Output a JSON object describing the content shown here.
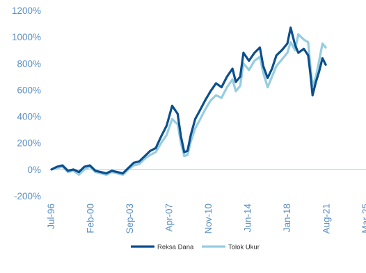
{
  "chart_data": {
    "type": "line",
    "title": "",
    "xlabel": "",
    "ylabel": "",
    "ylim": [
      -200,
      1200
    ],
    "y_ticks": [
      -200,
      0,
      200,
      400,
      600,
      800,
      1000,
      1200
    ],
    "y_tick_labels": [
      "-200%",
      "0%",
      "200%",
      "400%",
      "600%",
      "800%",
      "1000%",
      "1200%"
    ],
    "x_ticks": [
      1996.5,
      2000.08,
      2003.67,
      2007.25,
      2010.83,
      2014.42,
      2018.0,
      2021.58,
      2025.17
    ],
    "x_tick_labels": [
      "Jul-96",
      "Feb-00",
      "Sep-03",
      "Apr-07",
      "Nov-10",
      "Jun-14",
      "Jan-18",
      "Aug-21",
      "Mar-25"
    ],
    "xlim": [
      1996.5,
      2025.17
    ],
    "legend_position": "bottom-center",
    "grid": false,
    "series": [
      {
        "name": "Reksa Dana",
        "color": "#0b4e8c",
        "x": [
          1996.5,
          1997.0,
          1997.5,
          1998.0,
          1998.5,
          1999.0,
          1999.5,
          2000.0,
          2000.5,
          2001.0,
          2001.5,
          2002.0,
          2002.5,
          2003.0,
          2003.5,
          2004.0,
          2004.5,
          2005.0,
          2005.5,
          2006.0,
          2006.5,
          2007.0,
          2007.5,
          2008.0,
          2008.3,
          2008.6,
          2008.9,
          2009.2,
          2009.6,
          2010.0,
          2010.5,
          2011.0,
          2011.5,
          2012.0,
          2012.5,
          2013.0,
          2013.3,
          2013.7,
          2014.0,
          2014.5,
          2015.0,
          2015.5,
          2015.8,
          2016.2,
          2016.6,
          2017.0,
          2017.5,
          2018.0,
          2018.3,
          2018.7,
          2019.0,
          2019.5,
          2019.9,
          2020.1,
          2020.3,
          2020.6,
          2020.9,
          2021.2,
          2021.5
        ],
        "values": [
          0,
          20,
          30,
          -10,
          0,
          -20,
          20,
          30,
          -10,
          -20,
          -30,
          -10,
          -20,
          -30,
          10,
          50,
          60,
          100,
          140,
          160,
          250,
          330,
          480,
          420,
          250,
          130,
          140,
          260,
          380,
          440,
          520,
          590,
          650,
          620,
          700,
          760,
          660,
          700,
          880,
          820,
          880,
          920,
          780,
          690,
          760,
          860,
          900,
          950,
          1070,
          940,
          880,
          910,
          860,
          720,
          560,
          660,
          740,
          840,
          790
        ]
      },
      {
        "name": "Tolok Ukur",
        "color": "#96cde0",
        "x": [
          1996.5,
          1997.0,
          1997.5,
          1998.0,
          1998.5,
          1999.0,
          1999.5,
          2000.0,
          2000.5,
          2001.0,
          2001.5,
          2002.0,
          2002.5,
          2003.0,
          2003.5,
          2004.0,
          2004.5,
          2005.0,
          2005.5,
          2006.0,
          2006.5,
          2007.0,
          2007.5,
          2008.0,
          2008.3,
          2008.6,
          2008.9,
          2009.2,
          2009.6,
          2010.0,
          2010.5,
          2011.0,
          2011.5,
          2012.0,
          2012.5,
          2013.0,
          2013.3,
          2013.7,
          2014.0,
          2014.5,
          2015.0,
          2015.5,
          2015.8,
          2016.2,
          2016.6,
          2017.0,
          2017.5,
          2018.0,
          2018.3,
          2018.7,
          2019.0,
          2019.5,
          2019.9,
          2020.1,
          2020.3,
          2020.6,
          2020.9,
          2021.2,
          2021.5
        ],
        "values": [
          0,
          10,
          20,
          -20,
          -10,
          -40,
          0,
          20,
          -20,
          -30,
          -40,
          -20,
          -30,
          -40,
          0,
          30,
          40,
          80,
          110,
          130,
          200,
          260,
          380,
          340,
          200,
          100,
          110,
          210,
          310,
          370,
          450,
          520,
          560,
          540,
          620,
          680,
          590,
          630,
          800,
          750,
          820,
          850,
          730,
          620,
          700,
          780,
          830,
          880,
          960,
          900,
          1020,
          980,
          960,
          780,
          630,
          700,
          820,
          950,
          920
        ]
      }
    ]
  }
}
